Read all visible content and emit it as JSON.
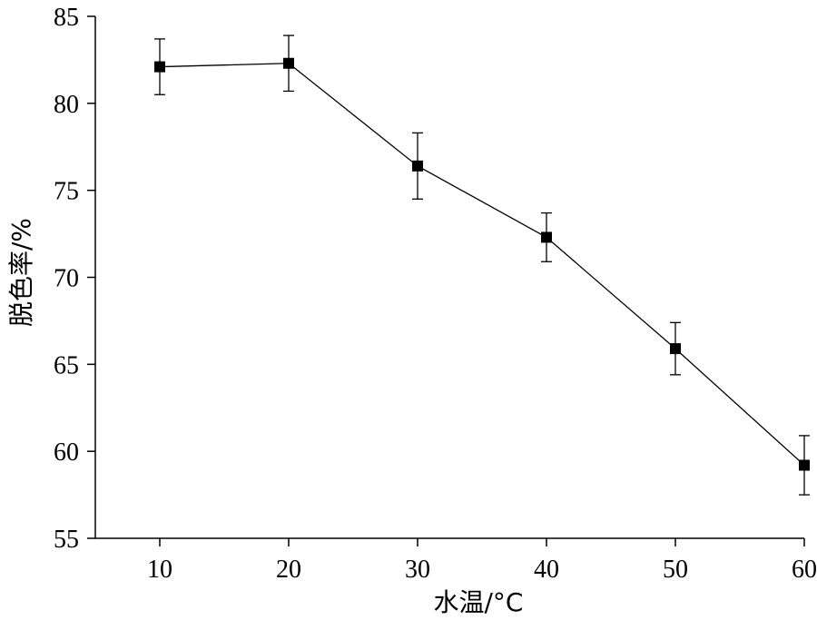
{
  "chart_data": {
    "type": "line",
    "title": "",
    "xlabel": "水温/°C",
    "ylabel": "脱色率/%",
    "xlim": [
      5,
      60
    ],
    "ylim": [
      55,
      85
    ],
    "xticks": [
      10,
      20,
      30,
      40,
      50,
      60
    ],
    "yticks": [
      55,
      60,
      65,
      70,
      75,
      80,
      85
    ],
    "grid": false,
    "marker": "square",
    "series": [
      {
        "x": [
          10,
          20,
          30,
          40,
          50,
          60
        ],
        "y": [
          82.1,
          82.3,
          76.4,
          72.3,
          65.9,
          59.2
        ],
        "err": [
          1.6,
          1.6,
          1.9,
          1.4,
          1.5,
          1.7
        ]
      }
    ]
  }
}
